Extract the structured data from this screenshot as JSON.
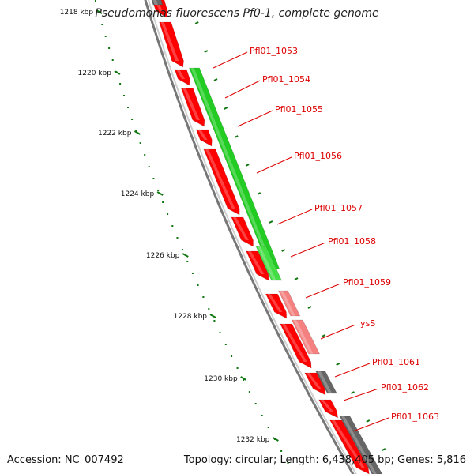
{
  "title": "Pseudomonas fluorescens Pf0-1, complete genome",
  "footer": {
    "accession": "Accession: NC_007492",
    "summary": "Topology: circular; Length: 6,438,405 bp; Genes: 5,816"
  },
  "colors": {
    "forward_gene": "#ff0000",
    "reverse_gene": "#22cc22",
    "reverse_gene_light": "#f48080",
    "reverse_gene_gray": "#666666",
    "backbone": "#888888",
    "ticks": "#117711",
    "label": "#dd0000"
  },
  "ticks": [
    "1218 kbp",
    "1220 kbp",
    "1222 kbp",
    "1224 kbp",
    "1226 kbp",
    "1228 kbp",
    "1230 kbp",
    "1232 kbp"
  ],
  "gene_labels": [
    "Pfl01_1053",
    "Pfl01_1054",
    "Pfl01_1055",
    "Pfl01_1056",
    "Pfl01_1057",
    "Pfl01_1058",
    "Pfl01_1059",
    "lysS",
    "Pfl01_1061",
    "Pfl01_1062",
    "Pfl01_1063"
  ]
}
